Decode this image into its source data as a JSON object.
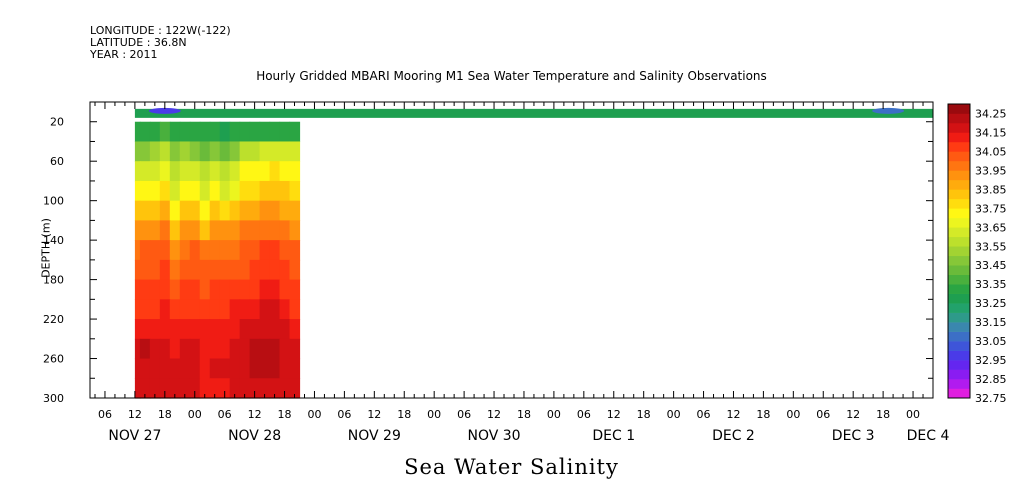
{
  "header": {
    "longitude": "LONGITUDE : 122W(-122)",
    "latitude": "LATITUDE : 36.8N",
    "year": "YEAR : 2011"
  },
  "chart_data": {
    "type": "heatmap",
    "title": "Hourly Gridded MBARI Mooring M1 Sea Water Temperature and Salinity Observations",
    "variable_title": "Sea Water Salinity",
    "ylabel": "DEPTH (m)",
    "xlabel": "",
    "y_axis": {
      "range": [
        300,
        0
      ],
      "inverted": true,
      "tick_labels": [
        20,
        60,
        100,
        140,
        180,
        220,
        260,
        300
      ],
      "minor_step": 20
    },
    "x_axis": {
      "hour_tick_labels": [
        "06",
        "12",
        "18",
        "00",
        "06",
        "12",
        "18",
        "00",
        "06",
        "12",
        "18",
        "00",
        "06",
        "12",
        "18",
        "00",
        "06",
        "12",
        "18",
        "00",
        "06",
        "12",
        "18",
        "00",
        "06",
        "12",
        "18",
        "00",
        "06",
        "12",
        "18",
        "00"
      ],
      "date_labels": [
        "NOV 27",
        "NOV 28",
        "NOV 29",
        "NOV 30",
        "DEC  1",
        "DEC  2",
        "DEC  3",
        "DEC  4"
      ],
      "date_label_hours": [
        12,
        36,
        60,
        84,
        108,
        132,
        156,
        171
      ],
      "hour_tick_hours": [
        6,
        12,
        18,
        24,
        30,
        36,
        42,
        48,
        54,
        60,
        66,
        72,
        78,
        84,
        90,
        96,
        102,
        108,
        114,
        120,
        126,
        132,
        138,
        144,
        150,
        156,
        162,
        168,
        174,
        180,
        186,
        192
      ],
      "range_hours": [
        3,
        172
      ],
      "hour_zero": "NOV 27 00"
    },
    "colorbar": {
      "levels": [
        32.75,
        32.8,
        32.85,
        32.9,
        32.95,
        33.0,
        33.05,
        33.1,
        33.15,
        33.2,
        33.25,
        33.3,
        33.35,
        33.4,
        33.45,
        33.5,
        33.55,
        33.6,
        33.65,
        33.7,
        33.75,
        33.8,
        33.85,
        33.9,
        33.95,
        34.0,
        34.05,
        34.1,
        34.15,
        34.2,
        34.25
      ],
      "labels": [
        "34.25",
        "34.15",
        "34.05",
        "33.95",
        "33.85",
        "33.75",
        "33.65",
        "33.55",
        "33.45",
        "33.35",
        "33.25",
        "33.15",
        "33.05",
        "32.95",
        "32.85",
        "32.75"
      ],
      "colors": [
        "#e01fe0",
        "#b11bef",
        "#8a1cf2",
        "#6426f0",
        "#4a3be8",
        "#3e55d9",
        "#3c6fc6",
        "#3a87ae",
        "#2e9a8a",
        "#22a26b",
        "#1e9f50",
        "#2aa543",
        "#49b03d",
        "#6abb3a",
        "#86c738",
        "#a2d332",
        "#bce02c",
        "#d4ea28",
        "#ecf51f",
        "#fff714",
        "#ffdd0e",
        "#ffc40c",
        "#ffab0d",
        "#ff920f",
        "#ff7511",
        "#ff5a12",
        "#ff3b13",
        "#f01c14",
        "#d31214",
        "#b80e12",
        "#9a0a0e"
      ]
    },
    "surface_band": {
      "depth_range": [
        10,
        12
      ],
      "time_range": [
        12,
        172
      ],
      "value": 33.25,
      "low_spots": [
        {
          "hour": 18,
          "value": 32.95
        },
        {
          "hour": 163,
          "value": 33.05
        }
      ]
    },
    "columns_hours": [
      12,
      14,
      16,
      18,
      20,
      22,
      24,
      26,
      28,
      30,
      32,
      34,
      36,
      38,
      40,
      42,
      44
    ],
    "rows_depth": [
      30,
      50,
      70,
      90,
      110,
      130,
      150,
      170,
      190,
      210,
      230,
      250,
      270,
      290
    ],
    "values": [
      [
        33.3,
        33.3,
        33.32,
        33.35,
        33.3,
        33.32,
        33.3,
        33.3,
        33.3,
        33.28,
        33.3,
        33.32,
        33.3,
        33.3,
        33.3,
        33.3,
        33.3
      ],
      [
        33.45,
        33.45,
        33.5,
        33.55,
        33.45,
        33.5,
        33.48,
        33.42,
        33.48,
        33.4,
        33.45,
        33.55,
        33.55,
        33.6,
        33.62,
        33.62,
        33.62
      ],
      [
        33.6,
        33.6,
        33.62,
        33.68,
        33.55,
        33.6,
        33.62,
        33.55,
        33.62,
        33.55,
        33.6,
        33.7,
        33.72,
        33.72,
        33.75,
        33.72,
        33.72
      ],
      [
        33.7,
        33.7,
        33.72,
        33.75,
        33.62,
        33.7,
        33.72,
        33.62,
        33.7,
        33.62,
        33.68,
        33.75,
        33.78,
        33.8,
        33.82,
        33.8,
        33.78
      ],
      [
        33.8,
        33.8,
        33.82,
        33.88,
        33.72,
        33.8,
        33.82,
        33.72,
        33.8,
        33.78,
        33.82,
        33.88,
        33.88,
        33.9,
        33.9,
        33.88,
        33.85
      ],
      [
        33.9,
        33.92,
        33.92,
        33.95,
        33.82,
        33.9,
        33.92,
        33.82,
        33.9,
        33.9,
        33.92,
        33.95,
        33.95,
        33.98,
        33.98,
        33.95,
        33.93
      ],
      [
        33.98,
        34.0,
        34.0,
        34.02,
        33.92,
        33.98,
        34.0,
        33.95,
        33.98,
        33.97,
        33.98,
        34.0,
        34.02,
        34.05,
        34.05,
        34.0,
        34.0
      ],
      [
        34.02,
        34.02,
        34.02,
        34.05,
        33.98,
        34.02,
        34.02,
        34.0,
        34.02,
        34.0,
        34.02,
        34.03,
        34.05,
        34.08,
        34.08,
        34.05,
        34.02
      ],
      [
        34.05,
        34.05,
        34.05,
        34.08,
        34.03,
        34.05,
        34.05,
        34.03,
        34.05,
        34.05,
        34.05,
        34.07,
        34.08,
        34.1,
        34.12,
        34.08,
        34.05
      ],
      [
        34.08,
        34.08,
        34.08,
        34.1,
        34.07,
        34.08,
        34.08,
        34.07,
        34.08,
        34.08,
        34.1,
        34.12,
        34.12,
        34.15,
        34.15,
        34.12,
        34.08
      ],
      [
        34.12,
        34.12,
        34.12,
        34.12,
        34.1,
        34.12,
        34.1,
        34.1,
        34.1,
        34.1,
        34.12,
        34.15,
        34.17,
        34.18,
        34.18,
        34.15,
        34.12
      ],
      [
        34.17,
        34.22,
        34.15,
        34.15,
        34.12,
        34.15,
        34.18,
        34.12,
        34.12,
        34.12,
        34.15,
        34.18,
        34.2,
        34.22,
        34.22,
        34.18,
        34.15
      ],
      [
        34.18,
        34.18,
        34.17,
        34.16,
        34.15,
        34.17,
        34.15,
        34.12,
        34.15,
        34.15,
        34.17,
        34.18,
        34.2,
        34.22,
        34.2,
        34.18,
        34.15
      ],
      [
        34.16,
        34.16,
        34.15,
        34.15,
        34.15,
        34.15,
        34.15,
        34.13,
        34.13,
        34.13,
        34.15,
        34.15,
        34.17,
        34.17,
        34.17,
        34.15,
        34.15
      ]
    ],
    "grid": false,
    "legend": "right colorbar"
  }
}
